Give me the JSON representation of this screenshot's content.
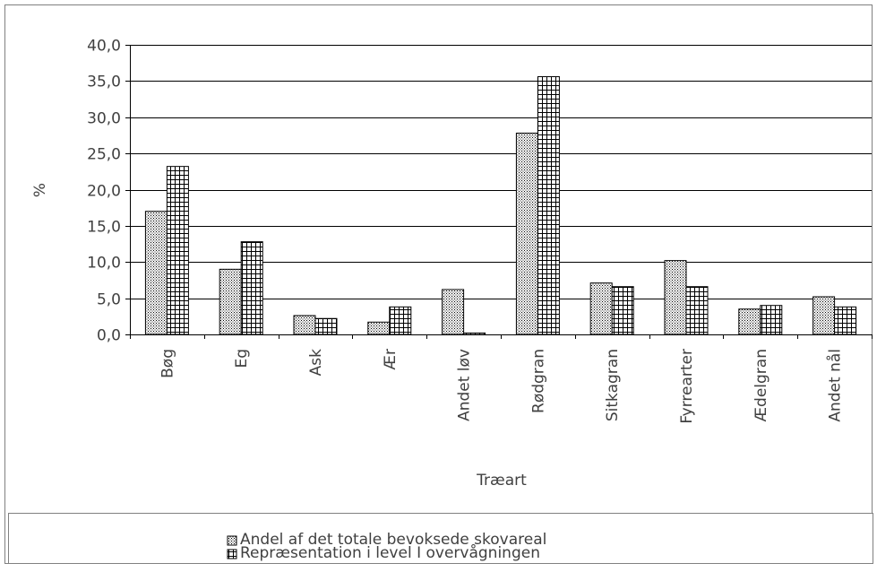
{
  "chart_data": {
    "type": "bar",
    "xlabel": "Træart",
    "ylabel": "%",
    "ylim": [
      0,
      40
    ],
    "yticks": [
      "0,0",
      "5,0",
      "10,0",
      "15,0",
      "20,0",
      "25,0",
      "30,0",
      "35,0",
      "40,0"
    ],
    "grid": true,
    "legend_position": "bottom",
    "categories": [
      "Bøg",
      "Eg",
      "Ask",
      "Ær",
      "Andet løv",
      "Rødgran",
      "Sitkagran",
      "Fyrrearter",
      "Ædelgran",
      "Andet nål"
    ],
    "series": [
      {
        "name": "Andel af det totale bevoksede skovareal",
        "pattern": "dots",
        "values": [
          17.0,
          9.0,
          2.6,
          1.7,
          6.2,
          27.8,
          7.1,
          10.2,
          3.5,
          5.2
        ]
      },
      {
        "name": "Repræsentation i level I overvågningen",
        "pattern": "grid",
        "values": [
          23.2,
          12.8,
          2.2,
          3.8,
          0.2,
          35.6,
          6.6,
          6.6,
          4.0,
          3.8
        ]
      }
    ]
  }
}
